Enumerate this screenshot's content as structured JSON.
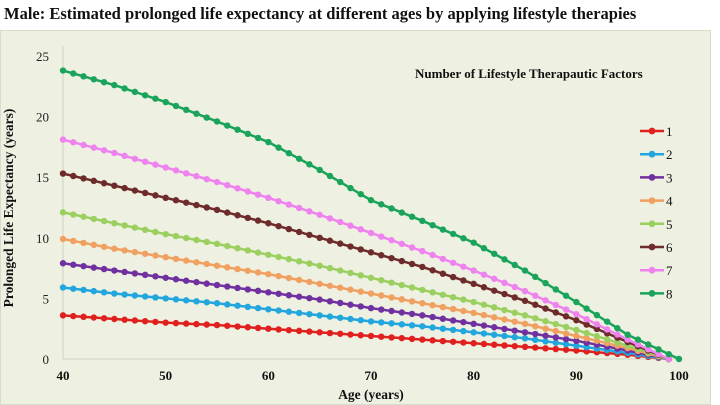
{
  "chart_data": {
    "type": "line",
    "title": "Male: Estimated prolonged life expectancy at different ages by applying lifestyle therapies",
    "xlabel": "Age (years)",
    "ylabel": "Prolonged Life Expectancy (years)",
    "xlim": [
      40,
      100
    ],
    "ylim": [
      0,
      25
    ],
    "xticks": [
      40,
      50,
      60,
      70,
      80,
      90,
      100
    ],
    "yticks": [
      0,
      5,
      10,
      15,
      20,
      25
    ],
    "grid": false,
    "legend_title": "Number of Lifestyle Therapautic Factors",
    "legend_position": "right",
    "marker": "circle",
    "series": [
      {
        "name": "1",
        "color": "#e0201e",
        "x": [
          40,
          45,
          50,
          55,
          60,
          65,
          70,
          75,
          80,
          85,
          90,
          95,
          99
        ],
        "values": [
          3.6,
          3.3,
          3.0,
          2.8,
          2.5,
          2.2,
          1.9,
          1.6,
          1.3,
          1.0,
          0.7,
          0.35,
          0
        ]
      },
      {
        "name": "2",
        "color": "#22a6de",
        "x": [
          40,
          45,
          50,
          55,
          60,
          65,
          70,
          75,
          80,
          85,
          90,
          95,
          99
        ],
        "values": [
          5.9,
          5.4,
          5.0,
          4.6,
          4.1,
          3.6,
          3.1,
          2.7,
          2.2,
          1.7,
          1.1,
          0.5,
          0
        ]
      },
      {
        "name": "3",
        "color": "#7030a0",
        "x": [
          40,
          45,
          50,
          55,
          60,
          65,
          70,
          75,
          80,
          85,
          90,
          95,
          99
        ],
        "values": [
          7.9,
          7.3,
          6.7,
          6.1,
          5.5,
          4.9,
          4.2,
          3.6,
          2.9,
          2.2,
          1.5,
          0.7,
          0
        ]
      },
      {
        "name": "4",
        "color": "#f0a060",
        "x": [
          40,
          45,
          50,
          55,
          60,
          65,
          70,
          75,
          80,
          85,
          90,
          95,
          99
        ],
        "values": [
          9.9,
          9.1,
          8.4,
          7.7,
          7.0,
          6.2,
          5.4,
          4.6,
          3.8,
          2.9,
          1.9,
          0.9,
          0
        ]
      },
      {
        "name": "5",
        "color": "#9bd060",
        "x": [
          40,
          45,
          50,
          55,
          60,
          65,
          70,
          75,
          80,
          85,
          90,
          95,
          99
        ],
        "values": [
          12.1,
          11.2,
          10.3,
          9.5,
          8.6,
          7.7,
          6.7,
          5.7,
          4.7,
          3.6,
          2.4,
          1.1,
          0
        ]
      },
      {
        "name": "6",
        "color": "#6e2b2b",
        "x": [
          40,
          45,
          50,
          55,
          60,
          65,
          70,
          75,
          80,
          85,
          90,
          95,
          99
        ],
        "values": [
          15.3,
          14.3,
          13.3,
          12.3,
          11.2,
          10.0,
          8.8,
          7.6,
          6.2,
          4.8,
          3.2,
          1.4,
          0
        ]
      },
      {
        "name": "7",
        "color": "#ee82ee",
        "x": [
          40,
          45,
          50,
          55,
          60,
          65,
          70,
          75,
          80,
          85,
          90,
          95,
          99
        ],
        "values": [
          18.1,
          17.0,
          15.8,
          14.6,
          13.3,
          11.9,
          10.4,
          8.9,
          7.3,
          5.6,
          3.7,
          1.6,
          0
        ]
      },
      {
        "name": "8",
        "color": "#1aa35a",
        "x": [
          40,
          45,
          50,
          55,
          60,
          65,
          70,
          75,
          80,
          85,
          90,
          95,
          100
        ],
        "values": [
          23.8,
          22.6,
          21.2,
          19.6,
          17.9,
          15.6,
          13.1,
          11.4,
          9.6,
          7.3,
          4.7,
          2.0,
          0
        ]
      }
    ]
  }
}
